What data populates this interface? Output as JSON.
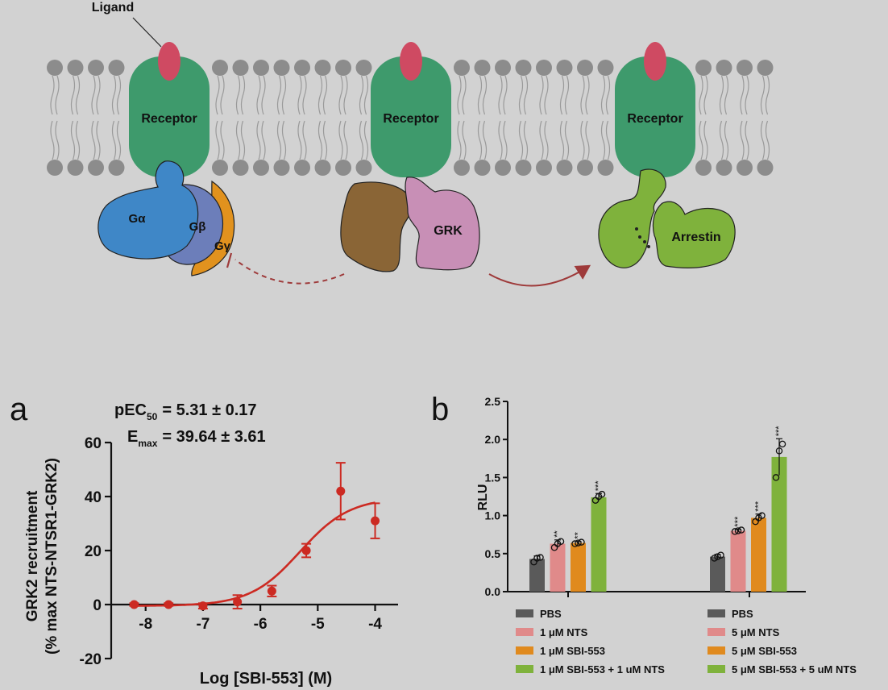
{
  "diagram": {
    "ligand_label": "Ligand",
    "receptor_label": "Receptor",
    "g_alpha": "Gα",
    "g_beta": "Gβ",
    "g_gamma": "Gγ",
    "grk_label": "GRK",
    "arrestin_label": "Arrestin"
  },
  "panel_a": {
    "letter": "a",
    "pec50_label": "pEC",
    "pec50_sub": "50",
    "pec50_value": "= 5.31 ± 0.17",
    "emax_label": "E",
    "emax_sub": "max",
    "emax_value": "= 39.64 ± 3.61",
    "ylabel_line1": "GRK2 recruitment",
    "ylabel_line2": "(% max NTS-NTSR1-GRK2)",
    "xlabel": "Log [SBI-553] (M)",
    "color": "#cc2a22"
  },
  "panel_b": {
    "letter": "b",
    "ylabel": "RLU",
    "legend_left": [
      "PBS",
      "1 μM NTS",
      "1 μM SBI-553",
      "1 μM SBI-553 + 1 uM NTS"
    ],
    "legend_right": [
      "PBS",
      "5 μM NTS",
      "5 μM SBI-553",
      "5 μM SBI-553 + 5 uM NTS"
    ],
    "colors": [
      "#5a5a5a",
      "#e08a8a",
      "#e08a1e",
      "#7fb23c"
    ]
  },
  "chart_data": [
    {
      "type": "scatter",
      "xlabel": "Log [SBI-553] (M)",
      "ylabel": "GRK2 recruitment (% max NTS-NTSR1-GRK2)",
      "xlim": [
        -8.6,
        -3.6
      ],
      "ylim": [
        -20,
        60
      ],
      "xticks": [
        -8,
        -7,
        -6,
        -5,
        -4
      ],
      "xtick_labels": [
        "-8",
        "-7",
        "-6",
        "-5",
        "-4"
      ],
      "yticks": [
        -20,
        0,
        20,
        40,
        60
      ],
      "ytick_labels": [
        "-20",
        "0",
        "20",
        "40",
        "60"
      ],
      "x": [
        -8.2,
        -7.6,
        -7.0,
        -6.4,
        -5.8,
        -5.2,
        -4.6,
        -4.0
      ],
      "y": [
        0,
        0,
        -0.5,
        1,
        5,
        20,
        42,
        31
      ],
      "err": [
        0.5,
        0.5,
        1,
        2.5,
        2,
        2.5,
        10.5,
        6.5
      ],
      "fit": {
        "pec50": 5.31,
        "emax": 39.64,
        "bottom": -0.5
      }
    },
    {
      "type": "bar",
      "ylabel": "RLU",
      "ylim": [
        0,
        2.5
      ],
      "yticks": [
        0.0,
        0.5,
        1.0,
        1.5,
        2.0,
        2.5
      ],
      "ytick_labels": [
        "0.0",
        "0.5",
        "1.0",
        "1.5",
        "2.0",
        "2.5"
      ],
      "groups": [
        {
          "bars": [
            {
              "series": "PBS",
              "value": 0.43,
              "err": 0.04,
              "points": [
                0.39,
                0.44,
                0.45
              ],
              "sig": ""
            },
            {
              "series": "1 μM NTS",
              "value": 0.63,
              "err": 0.05,
              "points": [
                0.58,
                0.63,
                0.66
              ],
              "sig": "**"
            },
            {
              "series": "1 μM SBI-553",
              "value": 0.64,
              "err": 0.02,
              "points": [
                0.63,
                0.64,
                0.65
              ],
              "sig": "**"
            },
            {
              "series": "1 μM SBI-553 + 1 uM NTS",
              "value": 1.24,
              "err": 0.05,
              "points": [
                1.2,
                1.25,
                1.28
              ],
              "sig": "***"
            }
          ]
        },
        {
          "bars": [
            {
              "series": "PBS",
              "value": 0.46,
              "err": 0.03,
              "points": [
                0.44,
                0.46,
                0.48
              ],
              "sig": ""
            },
            {
              "series": "5 μM NTS",
              "value": 0.8,
              "err": 0.02,
              "points": [
                0.79,
                0.8,
                0.81
              ],
              "sig": "***"
            },
            {
              "series": "5 μM SBI-553",
              "value": 0.97,
              "err": 0.05,
              "points": [
                0.92,
                0.97,
                1.0
              ],
              "sig": "***"
            },
            {
              "series": "5 μM SBI-553 + 5 uM NTS",
              "value": 1.77,
              "err": 0.24,
              "points": [
                1.5,
                1.85,
                1.94
              ],
              "sig": "***"
            }
          ]
        }
      ]
    }
  ]
}
